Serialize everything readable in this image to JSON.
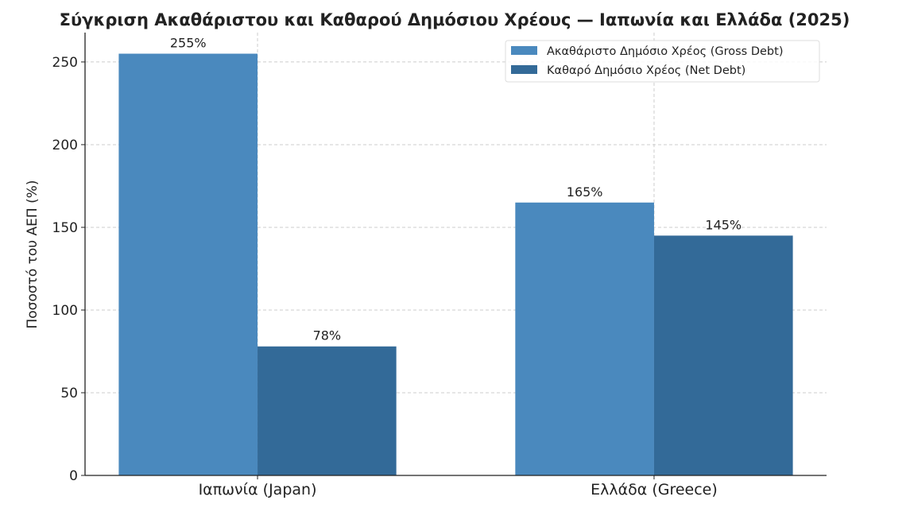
{
  "chart_data": {
    "type": "bar",
    "title": "Σύγκριση Ακαθάριστου και Καθαρού Δημόσιου Χρέους — Ιαπωνία και Ελλάδα (2025)",
    "xlabel": "",
    "ylabel": "Ποσοστό του ΑΕΠ (%)",
    "categories": [
      "Ιαπωνία (Japan)",
      "Ελλάδα (Greece)"
    ],
    "series": [
      {
        "name": "Ακαθάριστο Δημόσιο Χρέος (Gross Debt)",
        "values": [
          255,
          165
        ],
        "labels": [
          "255%",
          "165%"
        ],
        "color": "#4a89be"
      },
      {
        "name": "Καθαρό Δημόσιο Χρέος (Net Debt)",
        "values": [
          78,
          145
        ],
        "labels": [
          "78%",
          "145%"
        ],
        "color": "#336a98"
      }
    ],
    "ylim": [
      0,
      267.75
    ],
    "yticks": [
      0,
      50,
      100,
      150,
      200,
      250
    ],
    "grid": true,
    "legend_position": "top-right"
  }
}
